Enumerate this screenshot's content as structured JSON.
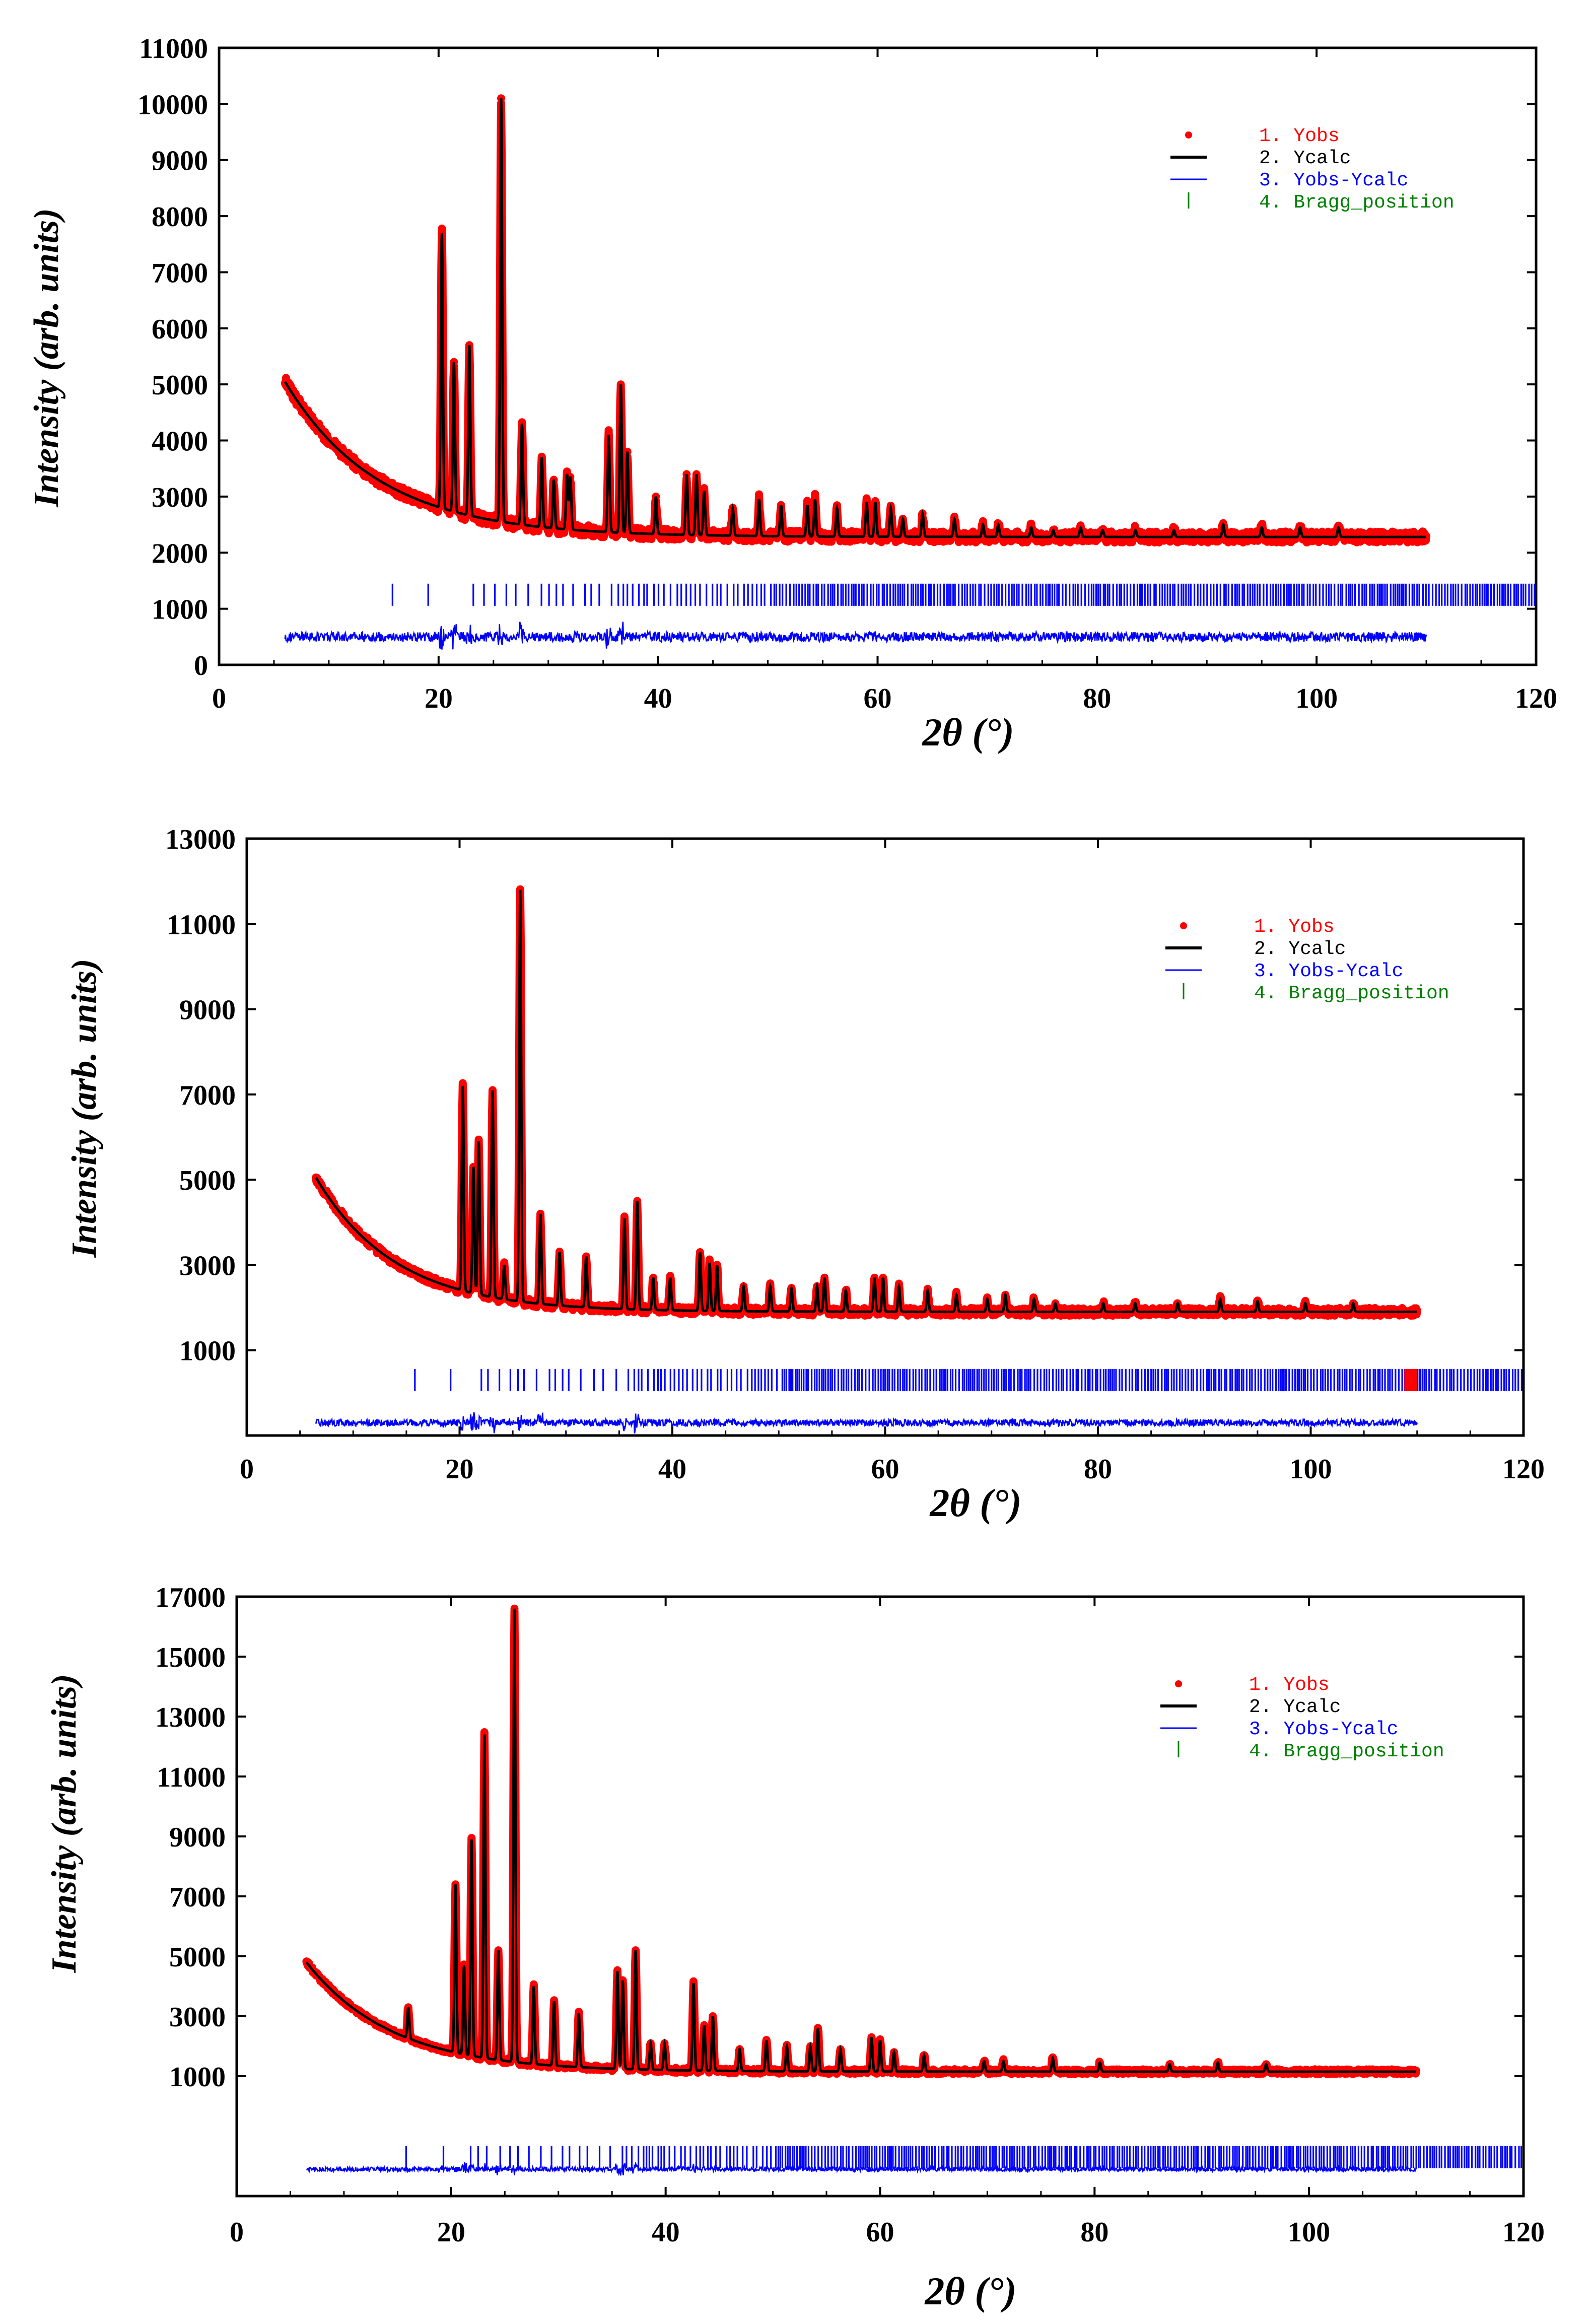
{
  "colors": {
    "yobs": "#ff0000",
    "ycalc": "#000000",
    "diff": "#0000ff",
    "bragg": "#0000ff",
    "bragg_legend": "#008000",
    "frame": "#000000"
  },
  "chart_data": [
    {
      "type": "line",
      "title": "",
      "xlabel": "2θ (°)",
      "ylabel": "Intensity (arb. units)",
      "xlim": [
        0,
        120
      ],
      "ylim": [
        0,
        11000
      ],
      "xticks": [
        "0",
        "20",
        "40",
        "60",
        "80",
        "100",
        "120"
      ],
      "yticks": [
        "0",
        "1000",
        "2000",
        "3000",
        "4000",
        "5000",
        "6000",
        "7000",
        "8000",
        "9000",
        "10000",
        "11000"
      ],
      "legend_position": "top-right",
      "legend": [
        {
          "label": "1. Yobs",
          "marker": "dot"
        },
        {
          "label": "2. Ycalc",
          "marker": "line"
        },
        {
          "label": "3. Yobs-Ycalc",
          "marker": "thin-line"
        },
        {
          "label": "4. Bragg_position",
          "marker": "tick"
        }
      ],
      "x_range": [
        6,
        110
      ],
      "background": {
        "start": 5050,
        "end": 2280,
        "decay": 8.5
      },
      "peaks": [
        [
          20.3,
          7700
        ],
        [
          21.4,
          5400
        ],
        [
          22.8,
          5700
        ],
        [
          25.7,
          10100
        ],
        [
          27.6,
          4300
        ],
        [
          29.4,
          3700
        ],
        [
          30.5,
          3300
        ],
        [
          31.7,
          3400
        ],
        [
          32.0,
          3350
        ],
        [
          35.5,
          4100
        ],
        [
          36.6,
          5000
        ],
        [
          37.2,
          3800
        ],
        [
          39.8,
          3000
        ],
        [
          42.6,
          3400
        ],
        [
          43.5,
          3400
        ],
        [
          44.2,
          3100
        ],
        [
          46.8,
          2800
        ],
        [
          49.2,
          2950
        ],
        [
          51.2,
          2850
        ],
        [
          53.6,
          2850
        ],
        [
          54.3,
          2950
        ],
        [
          56.3,
          2800
        ],
        [
          59.0,
          2900
        ],
        [
          59.8,
          2900
        ],
        [
          61.2,
          2800
        ],
        [
          62.3,
          2600
        ],
        [
          64.1,
          2700
        ],
        [
          67.0,
          2600
        ],
        [
          69.6,
          2500
        ],
        [
          71.0,
          2500
        ],
        [
          74.0,
          2450
        ],
        [
          76.0,
          2400
        ],
        [
          78.5,
          2450
        ],
        [
          80.5,
          2400
        ],
        [
          83.5,
          2400
        ],
        [
          87.0,
          2400
        ],
        [
          91.5,
          2500
        ],
        [
          95.0,
          2450
        ],
        [
          98.5,
          2450
        ],
        [
          102.0,
          2450
        ]
      ],
      "bragg_y": 1250,
      "bragg_start": 15.8,
      "bragg_end": 120,
      "diff_y": 500,
      "noise": 110,
      "seed": 11
    },
    {
      "type": "line",
      "title": "",
      "xlabel": "2θ (°)",
      "ylabel": "Intensity (arb. units)",
      "xlim": [
        0,
        120
      ],
      "ylim": [
        -1000,
        13000
      ],
      "xticks": [
        "0",
        "20",
        "40",
        "60",
        "80",
        "100",
        "120"
      ],
      "yticks": [
        "1000",
        "3000",
        "5000",
        "7000",
        "9000",
        "11000",
        "13000"
      ],
      "legend_position": "top-right",
      "legend": [
        {
          "label": "1. Yobs",
          "marker": "dot"
        },
        {
          "label": "2. Ycalc",
          "marker": "line"
        },
        {
          "label": "3. Yobs-Ycalc",
          "marker": "thin-line"
        },
        {
          "label": "4. Bragg_position",
          "marker": "tick"
        }
      ],
      "x_range": [
        6.5,
        110
      ],
      "background": {
        "start": 5050,
        "end": 1900,
        "decay": 7.5
      },
      "peaks": [
        [
          20.3,
          7200
        ],
        [
          21.3,
          5300
        ],
        [
          21.8,
          5900
        ],
        [
          23.1,
          7100
        ],
        [
          24.2,
          3000
        ],
        [
          25.7,
          11800
        ],
        [
          27.6,
          4200
        ],
        [
          29.4,
          3300
        ],
        [
          31.9,
          3200
        ],
        [
          35.5,
          4100
        ],
        [
          36.7,
          4500
        ],
        [
          38.2,
          2700
        ],
        [
          39.8,
          2700
        ],
        [
          42.6,
          3300
        ],
        [
          43.5,
          3050
        ],
        [
          44.2,
          3000
        ],
        [
          46.7,
          2500
        ],
        [
          49.2,
          2500
        ],
        [
          51.2,
          2450
        ],
        [
          53.6,
          2500
        ],
        [
          54.3,
          2700
        ],
        [
          56.3,
          2400
        ],
        [
          59.0,
          2700
        ],
        [
          59.8,
          2700
        ],
        [
          61.3,
          2500
        ],
        [
          64.0,
          2400
        ],
        [
          66.7,
          2300
        ],
        [
          69.6,
          2200
        ],
        [
          71.3,
          2300
        ],
        [
          74.0,
          2200
        ],
        [
          76.0,
          2100
        ],
        [
          80.5,
          2100
        ],
        [
          83.5,
          2100
        ],
        [
          87.5,
          2100
        ],
        [
          91.5,
          2200
        ],
        [
          95.0,
          2150
        ],
        [
          99.5,
          2100
        ],
        [
          104.0,
          2100
        ]
      ],
      "bragg_y": 300,
      "bragg_start": 15.8,
      "bragg_end": 120,
      "bragg_red_band": [
        108.8,
        110
      ],
      "diff_y": -700,
      "noise": 100,
      "seed": 23
    },
    {
      "type": "line",
      "title": "",
      "xlabel": "2θ (°)",
      "ylabel": "Intensity (arb. units)",
      "xlim": [
        0,
        120
      ],
      "ylim": [
        -3000,
        17000
      ],
      "xticks": [
        "0",
        "20",
        "40",
        "60",
        "80",
        "100",
        "120"
      ],
      "yticks": [
        "1000",
        "3000",
        "5000",
        "7000",
        "9000",
        "11000",
        "13000",
        "15000",
        "17000"
      ],
      "legend_position": "top-right",
      "legend": [
        {
          "label": "1. Yobs",
          "marker": "dot"
        },
        {
          "label": "2. Ycalc",
          "marker": "line"
        },
        {
          "label": "3. Yobs-Ycalc",
          "marker": "thin-line"
        },
        {
          "label": "4. Bragg_position",
          "marker": "tick"
        }
      ],
      "x_range": [
        6.5,
        110
      ],
      "background": {
        "start": 4800,
        "end": 1150,
        "decay": 8.0
      },
      "peaks": [
        [
          16.0,
          3300
        ],
        [
          20.4,
          7400
        ],
        [
          21.2,
          4700
        ],
        [
          21.9,
          8900
        ],
        [
          23.1,
          12400
        ],
        [
          24.4,
          5200
        ],
        [
          25.9,
          16600
        ],
        [
          27.7,
          4000
        ],
        [
          29.6,
          3500
        ],
        [
          31.9,
          3100
        ],
        [
          35.5,
          4500
        ],
        [
          36.0,
          4200
        ],
        [
          37.2,
          5200
        ],
        [
          38.6,
          2100
        ],
        [
          39.9,
          2100
        ],
        [
          42.6,
          4100
        ],
        [
          43.6,
          2700
        ],
        [
          44.4,
          3000
        ],
        [
          46.9,
          1900
        ],
        [
          49.4,
          2200
        ],
        [
          51.3,
          2000
        ],
        [
          53.5,
          2000
        ],
        [
          54.2,
          2600
        ],
        [
          56.3,
          1900
        ],
        [
          59.2,
          2300
        ],
        [
          60.0,
          2200
        ],
        [
          61.3,
          1800
        ],
        [
          64.1,
          1700
        ],
        [
          69.7,
          1500
        ],
        [
          71.5,
          1500
        ],
        [
          76.1,
          1600
        ],
        [
          80.5,
          1450
        ],
        [
          87.0,
          1400
        ],
        [
          91.5,
          1450
        ],
        [
          96.0,
          1400
        ]
      ],
      "bragg_y": -1700,
      "bragg_start": 15.8,
      "bragg_end": 120,
      "diff_y": -2100,
      "noise": 90,
      "seed": 37
    }
  ]
}
